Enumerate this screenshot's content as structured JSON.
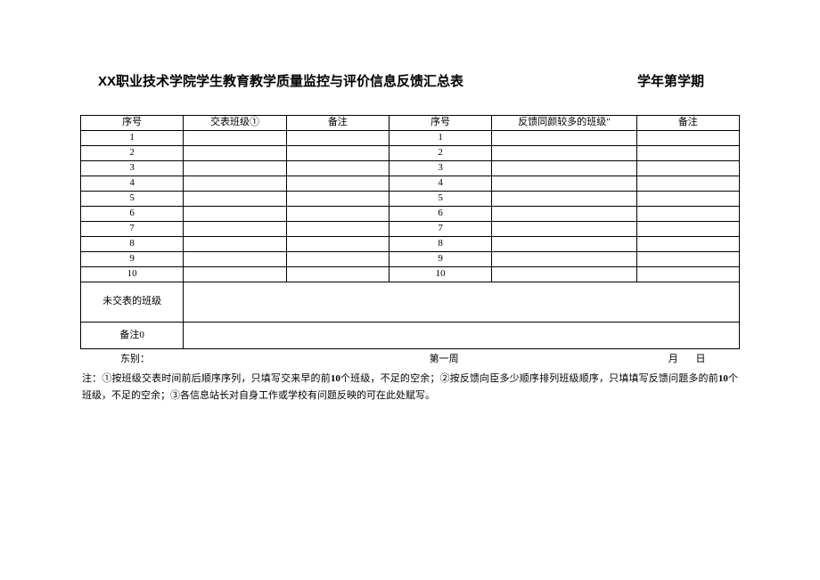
{
  "title": "XX职业技术学院学生教育教学质量监控与评价信息反馈汇总表",
  "semester": "学年第学期",
  "headers": {
    "seq1": "序号",
    "submit_class": "交表班级①",
    "note1": "备注",
    "seq2": "序号",
    "feedback_class": "反馈同颜较多的班级\"",
    "note2": "备注"
  },
  "rows": [
    {
      "a": "1",
      "b": "",
      "c": "",
      "d": "1",
      "e": "",
      "f": ""
    },
    {
      "a": "2",
      "b": "",
      "c": "",
      "d": "2",
      "e": "",
      "f": ""
    },
    {
      "a": "3",
      "b": "",
      "c": "",
      "d": "3",
      "e": "",
      "f": ""
    },
    {
      "a": "4",
      "b": "",
      "c": "",
      "d": "4",
      "e": "",
      "f": ""
    },
    {
      "a": "5",
      "b": "",
      "c": "",
      "d": "5",
      "e": "",
      "f": ""
    },
    {
      "a": "6",
      "b": "",
      "c": "",
      "d": "6",
      "e": "",
      "f": ""
    },
    {
      "a": "7",
      "b": "",
      "c": "",
      "d": "7",
      "e": "",
      "f": ""
    },
    {
      "a": "8",
      "b": "",
      "c": "",
      "d": "8",
      "e": "",
      "f": ""
    },
    {
      "a": "9",
      "b": "",
      "c": "",
      "d": "9",
      "e": "",
      "f": ""
    },
    {
      "a": "10",
      "b": "",
      "c": "",
      "d": "10",
      "e": "",
      "f": ""
    }
  ],
  "not_submitted_label": "未交表的班级",
  "remark_label": "备注0",
  "signature": {
    "dept": "东别：",
    "week": "第一周",
    "month": "月",
    "day": "日"
  },
  "notes_prefix": "注：",
  "notes_1a": "①按班级交表时间前后顺序序列，只填写交来早的前",
  "notes_10a": "10",
  "notes_1b": "个班级，不足的空余；②按反馈向臣多少顺序排列班级顺序，只填填写反馈问题多的前",
  "notes_10b": "10",
  "notes_2": "个班级，不足的空余；③各信息站长对自身工作或学校有问题反映的可在此处赋写。"
}
